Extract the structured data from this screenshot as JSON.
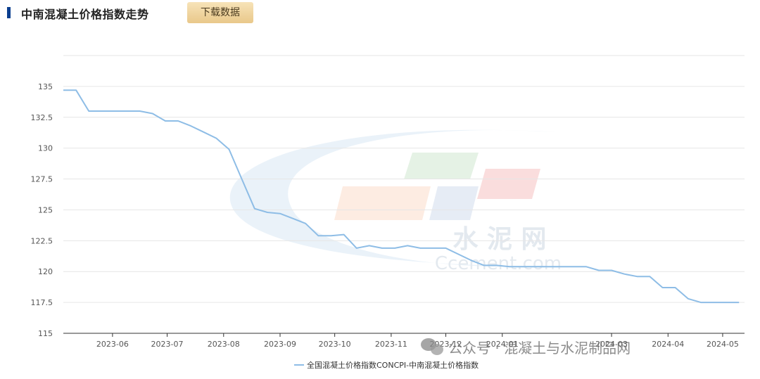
{
  "header": {
    "title": "中南混凝土价格指数走势",
    "download_label": "下载数据"
  },
  "colors": {
    "line": "#8ebde6",
    "grid": "#e6e6e6",
    "accent_bar": "#0b3f8f"
  },
  "watermark": {
    "cn": "水 泥 网",
    "en": "Ccement.com",
    "wechat": "公众号 · 混凝土与水泥制品网"
  },
  "chart_data": {
    "type": "line",
    "title": "",
    "xlabel": "",
    "ylabel": "",
    "ylim": [
      115,
      137.5
    ],
    "yticks": [
      115,
      117.5,
      120,
      122.5,
      125,
      127.5,
      130,
      132.5,
      135
    ],
    "ytick_labels": [
      "115",
      "117.5",
      "120",
      "122.5",
      "125",
      "127.5",
      "130",
      "132.5",
      "135"
    ],
    "grid": true,
    "legend_position": "bottom-center",
    "xticks": [
      {
        "label": "2023-06",
        "date": "2023-06-01"
      },
      {
        "label": "2023-07",
        "date": "2023-07-01"
      },
      {
        "label": "2023-08",
        "date": "2023-08-01"
      },
      {
        "label": "2023-09",
        "date": "2023-09-01"
      },
      {
        "label": "2023-10",
        "date": "2023-10-01"
      },
      {
        "label": "2023-11",
        "date": "2023-11-01"
      },
      {
        "label": "2023-12",
        "date": "2023-12-01"
      },
      {
        "label": "2024-01",
        "date": "2024-01-01"
      },
      {
        "label": "2024-03",
        "date": "2024-03-01"
      },
      {
        "label": "2024-04",
        "date": "2024-04-01"
      },
      {
        "label": "2024-05",
        "date": "2024-05-01"
      }
    ],
    "series": [
      {
        "name": "全国混凝土价格指数CONCPI-中南混凝土价格指数",
        "x": [
          "2023-05-05",
          "2023-05-12",
          "2023-05-19",
          "2023-05-26",
          "2023-06-02",
          "2023-06-09",
          "2023-06-16",
          "2023-06-23",
          "2023-06-30",
          "2023-07-07",
          "2023-07-14",
          "2023-07-21",
          "2023-07-28",
          "2023-08-04",
          "2023-08-11",
          "2023-08-18",
          "2023-08-25",
          "2023-09-01",
          "2023-09-08",
          "2023-09-15",
          "2023-09-22",
          "2023-09-29",
          "2023-10-06",
          "2023-10-13",
          "2023-10-20",
          "2023-10-27",
          "2023-11-03",
          "2023-11-10",
          "2023-11-17",
          "2023-11-24",
          "2023-12-01",
          "2023-12-08",
          "2023-12-15",
          "2023-12-22",
          "2023-12-29",
          "2024-01-05",
          "2024-01-12",
          "2024-01-19",
          "2024-01-26",
          "2024-02-02",
          "2024-02-09",
          "2024-02-16",
          "2024-02-23",
          "2024-03-01",
          "2024-03-08",
          "2024-03-15",
          "2024-03-22",
          "2024-03-29",
          "2024-04-05",
          "2024-04-12",
          "2024-04-19",
          "2024-04-26",
          "2024-05-03",
          "2024-05-10"
        ],
        "values": [
          134.7,
          134.7,
          133.0,
          133.0,
          133.0,
          133.0,
          133.0,
          132.8,
          132.2,
          132.2,
          131.8,
          131.3,
          130.8,
          129.9,
          127.5,
          125.1,
          124.8,
          124.7,
          124.3,
          123.9,
          122.9,
          122.9,
          123.0,
          121.9,
          122.1,
          121.9,
          121.9,
          122.1,
          121.9,
          121.9,
          121.9,
          121.4,
          120.9,
          120.5,
          120.5,
          120.4,
          120.4,
          120.4,
          120.4,
          120.4,
          120.4,
          120.4,
          120.1,
          120.1,
          119.8,
          119.6,
          119.6,
          118.7,
          118.7,
          117.8,
          117.5,
          117.5,
          117.5,
          117.5
        ]
      }
    ]
  }
}
